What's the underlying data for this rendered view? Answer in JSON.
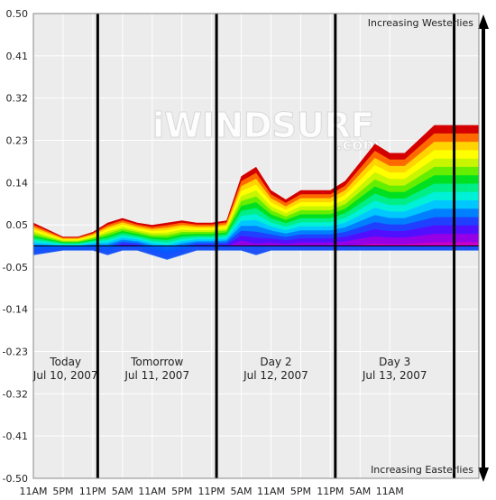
{
  "chart_data": {
    "type": "area",
    "ylim": [
      -0.5,
      0.5
    ],
    "y_ticks": [
      "0.50",
      "0.41",
      "0.32",
      "0.23",
      "0.14",
      "0.05",
      "-0.05",
      "-0.14",
      "-0.23",
      "-0.32",
      "-0.41",
      "-0.50"
    ],
    "x_ticks": [
      "11AM",
      "5PM",
      "11PM",
      "5AM",
      "11AM",
      "5PM",
      "11PM",
      "5AM",
      "11AM",
      "5PM",
      "11PM",
      "5AM",
      "11AM"
    ],
    "grid": true,
    "x_hours": [
      0,
      6,
      9,
      12,
      15,
      18,
      21,
      24,
      27,
      30,
      33,
      36,
      39,
      42,
      45,
      48,
      51,
      54,
      57,
      60,
      63,
      66,
      69,
      72,
      75,
      78,
      81,
      84,
      87,
      90
    ],
    "envelope": {
      "upper": [
        0.05,
        0.02,
        0.02,
        0.03,
        0.05,
        0.06,
        0.05,
        0.045,
        0.05,
        0.055,
        0.05,
        0.05,
        0.055,
        0.15,
        0.17,
        0.12,
        0.1,
        0.12,
        0.12,
        0.12,
        0.14,
        0.18,
        0.22,
        0.2,
        0.2,
        0.23,
        0.26,
        0.26,
        0.26,
        0.26
      ],
      "lower": [
        -0.02,
        -0.01,
        -0.01,
        -0.01,
        -0.02,
        -0.01,
        -0.01,
        -0.02,
        -0.03,
        -0.02,
        -0.01,
        -0.01,
        -0.01,
        -0.01,
        -0.02,
        -0.01,
        -0.01,
        -0.01,
        -0.01,
        -0.01,
        -0.01,
        -0.01,
        -0.01,
        -0.01,
        -0.01,
        -0.01,
        -0.01,
        -0.01,
        -0.01,
        -0.01
      ]
    },
    "ensemble_colors": [
      "#d40000",
      "#ff6a00",
      "#ffd400",
      "#ffff00",
      "#c8f500",
      "#66ee00",
      "#00e020",
      "#00ee88",
      "#00f0d8",
      "#00c8ff",
      "#0080ff",
      "#2040ff",
      "#5010ff",
      "#9600e6",
      "#c800c8"
    ],
    "day_dividers_hours": [
      13,
      37,
      61,
      85
    ],
    "day_labels": [
      {
        "name": "Today",
        "date": "Jul 10, 2007"
      },
      {
        "name": "Tomorrow",
        "date": "Jul 11, 2007"
      },
      {
        "name": "Day 2",
        "date": "Jul 12, 2007"
      },
      {
        "name": "Day 3",
        "date": "Jul 13, 2007"
      }
    ],
    "top_annotation": "Increasing Westerlies",
    "bottom_annotation": "Increasing Easterlies",
    "watermark_main": "iWINDSURF",
    "watermark_sub": ".com"
  }
}
